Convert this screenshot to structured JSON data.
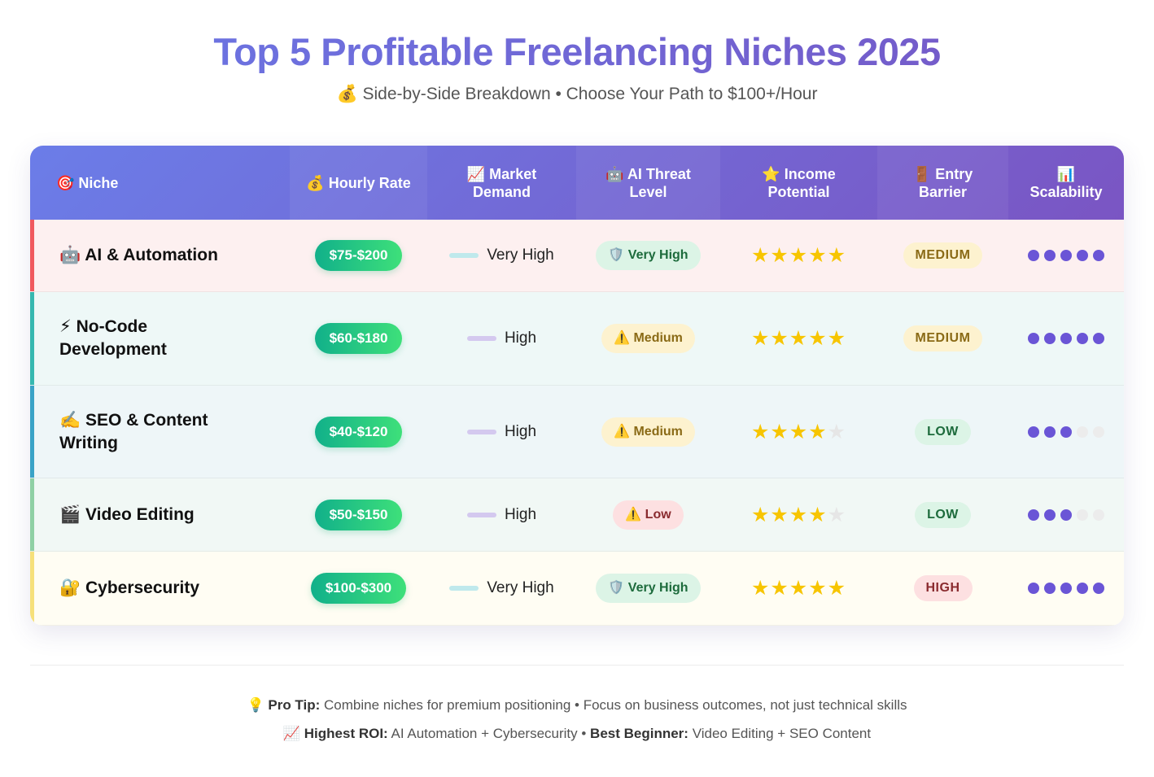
{
  "title": "Top 5 Profitable Freelancing Niches 2025",
  "subtitle": "💰 Side-by-Side Breakdown • Choose Your Path to $100+/Hour",
  "headers": {
    "niche": "🎯 Niche",
    "rate": "💰 Hourly Rate",
    "demand_1": "📈 Market",
    "demand_2": "Demand",
    "threat_1": "🤖 AI Threat",
    "threat_2": "Level",
    "income_1": "⭐ Income",
    "income_2": "Potential",
    "barrier_1": "🚪 Entry",
    "barrier_2": "Barrier",
    "scal_1": "📊",
    "scal_2": "Scalability"
  },
  "rows": [
    {
      "niche_1": "🤖 AI & Automation",
      "niche_2": "",
      "rate": "$75-$200",
      "demand": "Very High",
      "threat": "🛡️ Very High",
      "stars": 5,
      "barrier": "MEDIUM",
      "scalability": 5,
      "accent": "#f0595e",
      "bg": "#fdf0f0",
      "demand_bar": "#bfe9ec",
      "threat_bg": "#dcf4e6",
      "threat_fg": "#1d6b3c",
      "barrier_bg": "#fdf2cf",
      "barrier_fg": "#8a6a16"
    },
    {
      "niche_1": "⚡ No-Code",
      "niche_2": "Development",
      "rate": "$60-$180",
      "demand": "High",
      "threat": "⚠️ Medium",
      "stars": 5,
      "barrier": "MEDIUM",
      "scalability": 5,
      "accent": "#36b8b0",
      "bg": "#eef8f7",
      "demand_bar": "#d4c9ef",
      "threat_bg": "#fdf2cf",
      "threat_fg": "#8a6a16",
      "barrier_bg": "#fdf2cf",
      "barrier_fg": "#8a6a16"
    },
    {
      "niche_1": "✍️ SEO & Content",
      "niche_2": "Writing",
      "rate": "$40-$120",
      "demand": "High",
      "threat": "⚠️ Medium",
      "stars": 4,
      "barrier": "LOW",
      "scalability": 3,
      "accent": "#3aa3c7",
      "bg": "#eef6f8",
      "demand_bar": "#d4c9ef",
      "threat_bg": "#fdf2cf",
      "threat_fg": "#8a6a16",
      "barrier_bg": "#dcf4e6",
      "barrier_fg": "#1d6b3c"
    },
    {
      "niche_1": "🎬 Video Editing",
      "niche_2": "",
      "rate": "$50-$150",
      "demand": "High",
      "threat": "⚠️ Low",
      "stars": 4,
      "barrier": "LOW",
      "scalability": 3,
      "accent": "#8fd0a4",
      "bg": "#f1f8f5",
      "demand_bar": "#d4c9ef",
      "threat_bg": "#fde0e1",
      "threat_fg": "#8a2b2f",
      "barrier_bg": "#dcf4e6",
      "barrier_fg": "#1d6b3c"
    },
    {
      "niche_1": "🔐 Cybersecurity",
      "niche_2": "",
      "rate": "$100-$300",
      "demand": "Very High",
      "threat": "🛡️ Very High",
      "stars": 5,
      "barrier": "HIGH",
      "scalability": 5,
      "accent": "#f6e07a",
      "bg": "#fffdf3",
      "demand_bar": "#bfe9ec",
      "threat_bg": "#dcf4e6",
      "threat_fg": "#1d6b3c",
      "barrier_bg": "#fde0e1",
      "barrier_fg": "#8a2b2f"
    }
  ],
  "footer": {
    "tip_label": "💡 Pro Tip:",
    "tip_text": " Combine niches for premium positioning • Focus on business outcomes, not just technical skills",
    "roi_label": "📈 Highest ROI:",
    "roi_text": " AI Automation + Cybersecurity • ",
    "beginner_label": "Best Beginner:",
    "beginner_text": " Video Editing + SEO Content"
  },
  "colors": {
    "dot_on": "#6a55d6",
    "dot_off": "#ececec"
  }
}
